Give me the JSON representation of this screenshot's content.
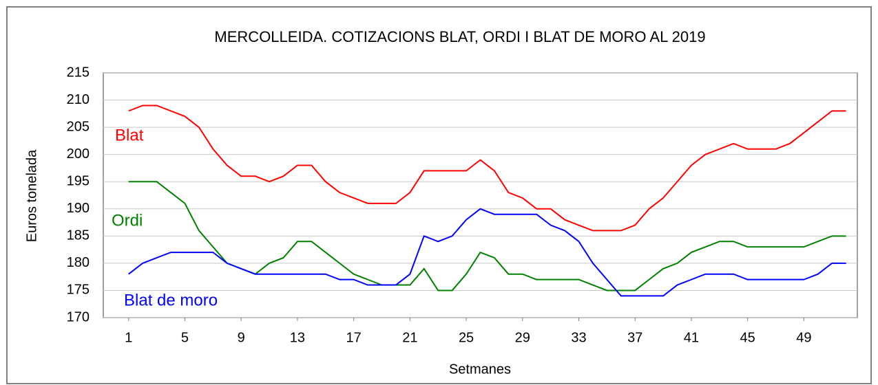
{
  "chart_data": {
    "type": "line",
    "title": "MERCOLLEIDA. COTIZACIONS BLAT, ORDI I BLAT DE MORO AL 2019",
    "x_label": "Setmanes",
    "y_label": "Euros tonelada",
    "x": [
      1,
      2,
      3,
      4,
      5,
      6,
      7,
      8,
      9,
      10,
      11,
      12,
      13,
      14,
      15,
      16,
      17,
      18,
      19,
      20,
      21,
      22,
      23,
      24,
      25,
      26,
      27,
      28,
      29,
      30,
      31,
      32,
      33,
      34,
      35,
      36,
      37,
      38,
      39,
      40,
      41,
      42,
      43,
      44,
      45,
      46,
      47,
      48,
      49,
      50,
      51,
      52
    ],
    "xlim": [
      -0.8,
      52.8
    ],
    "xticks": [
      1,
      5,
      9,
      13,
      17,
      21,
      25,
      29,
      33,
      37,
      41,
      45,
      49
    ],
    "ylim": [
      170,
      215
    ],
    "yticks": [
      170,
      175,
      180,
      185,
      190,
      195,
      200,
      205,
      210,
      215
    ],
    "grid": true,
    "series": [
      {
        "name": "Blat",
        "color": "#ff0000",
        "values": [
          208,
          209,
          209,
          208,
          207,
          205,
          201,
          198,
          196,
          196,
          195,
          196,
          198,
          198,
          195,
          193,
          192,
          191,
          191,
          191,
          193,
          197,
          197,
          197,
          197,
          199,
          197,
          193,
          192,
          190,
          190,
          188,
          187,
          186,
          186,
          186,
          187,
          190,
          192,
          195,
          198,
          200,
          201,
          202,
          201,
          201,
          201,
          202,
          204,
          206,
          208,
          208
        ]
      },
      {
        "name": "Ordi",
        "color": "#008000",
        "values": [
          195,
          195,
          195,
          193,
          191,
          186,
          183,
          180,
          179,
          178,
          180,
          181,
          184,
          184,
          182,
          180,
          178,
          177,
          176,
          176,
          176,
          179,
          175,
          175,
          178,
          182,
          181,
          178,
          178,
          177,
          177,
          177,
          177,
          176,
          175,
          175,
          175,
          177,
          179,
          180,
          182,
          183,
          184,
          184,
          183,
          183,
          183,
          183,
          183,
          184,
          185,
          185
        ]
      },
      {
        "name": "Blat de moro",
        "color": "#0000ff",
        "values": [
          178,
          180,
          181,
          182,
          182,
          182,
          182,
          180,
          179,
          178,
          178,
          178,
          178,
          178,
          178,
          177,
          177,
          176,
          176,
          176,
          178,
          185,
          184,
          185,
          188,
          190,
          189,
          189,
          189,
          189,
          187,
          186,
          184,
          180,
          177,
          174,
          174,
          174,
          174,
          176,
          177,
          178,
          178,
          178,
          177,
          177,
          177,
          177,
          177,
          178,
          180,
          180
        ]
      }
    ]
  }
}
